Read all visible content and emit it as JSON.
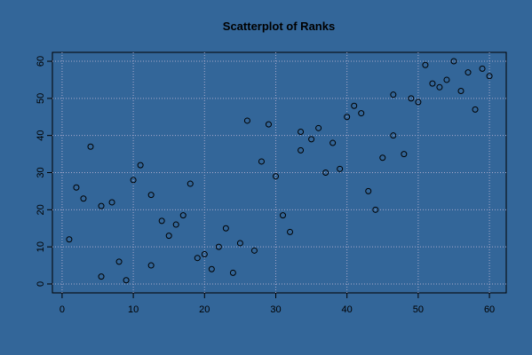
{
  "chart_data": {
    "type": "scatter",
    "title": "Scatterplot of Ranks",
    "x": [
      1,
      2,
      3,
      4,
      5.5,
      5.5,
      7,
      8,
      9,
      10,
      11,
      12.5,
      12.5,
      14,
      15,
      16,
      17,
      18,
      19,
      20,
      21,
      22,
      23,
      24,
      25,
      26,
      27,
      28,
      29,
      30,
      31,
      32,
      33.5,
      33.5,
      35,
      36,
      37,
      38,
      39,
      40,
      41,
      42,
      43,
      44,
      45,
      46.5,
      46.5,
      48,
      49,
      50,
      51,
      52,
      53,
      54,
      55,
      56,
      57,
      58,
      59,
      60
    ],
    "values": [
      12,
      26,
      23,
      37,
      21,
      2,
      22,
      6,
      1,
      28,
      32,
      24,
      5,
      17,
      13,
      16,
      18.5,
      27,
      7,
      8,
      4,
      10,
      15,
      3,
      11,
      44,
      9,
      33,
      43,
      29,
      18.5,
      14,
      41,
      36,
      39,
      42,
      30,
      38,
      31,
      45,
      48,
      46,
      25,
      20,
      34,
      51,
      40,
      35,
      50,
      49,
      59,
      54,
      53,
      55,
      60,
      52,
      57,
      47,
      58,
      56
    ],
    "color": "#000000",
    "xlim": [
      -1.36,
      62.36
    ],
    "xticks": [
      0,
      10,
      20,
      30,
      40,
      50,
      60
    ],
    "ylim": [
      -2.4,
      62.4
    ],
    "yticks": [
      0,
      10,
      20,
      30,
      40,
      50,
      60
    ],
    "grid": true
  }
}
